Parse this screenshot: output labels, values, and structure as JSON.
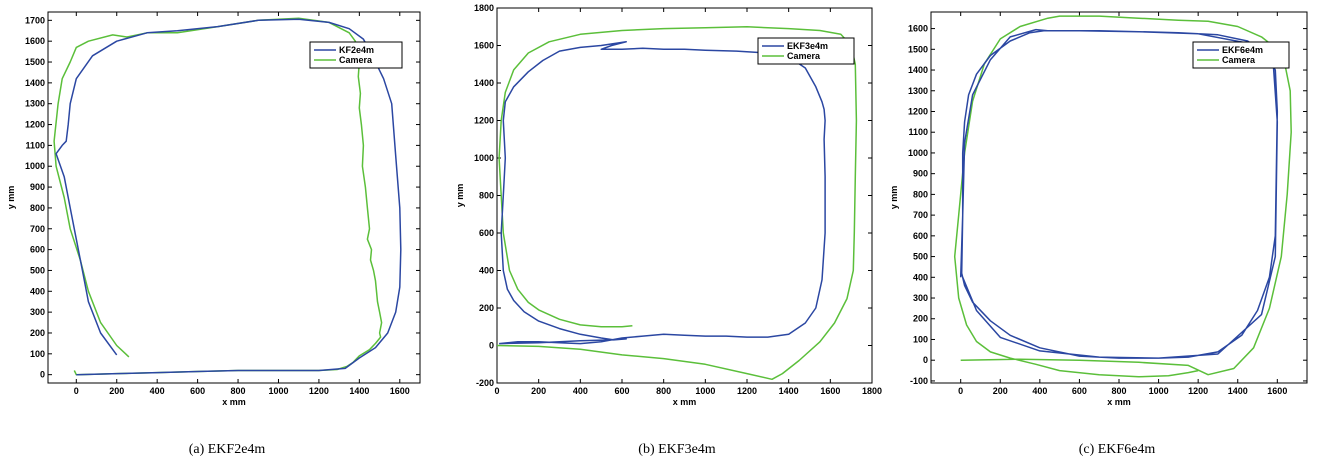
{
  "colors": {
    "estimate": "#2b47a2",
    "camera": "#5bbf3a"
  },
  "chart_data": [
    {
      "type": "line",
      "caption": "(a)  EKF2e4m",
      "xlabel": "x mm",
      "ylabel": "y mm",
      "xlim": [
        -140,
        1700
      ],
      "ylim": [
        -40,
        1740
      ],
      "xticks": [
        0,
        200,
        400,
        600,
        800,
        1000,
        1200,
        1400,
        1600
      ],
      "yticks": [
        0,
        100,
        200,
        300,
        400,
        500,
        600,
        700,
        800,
        900,
        1000,
        1100,
        1200,
        1300,
        1400,
        1500,
        1600,
        1700
      ],
      "legend_position": "top-right",
      "series": [
        {
          "name": "KF2e4m",
          "x": [
            200,
            120,
            60,
            30,
            0,
            -30,
            -60,
            -100,
            -70,
            -50,
            -40,
            -30,
            0,
            80,
            200,
            350,
            500,
            700,
            900,
            1100,
            1250,
            1350,
            1420,
            1470,
            1520,
            1560,
            1580,
            1600,
            1605,
            1600,
            1580,
            1540,
            1480,
            1400,
            1330,
            1200,
            1000,
            800,
            600,
            400,
            200,
            0
          ],
          "y": [
            95,
            200,
            350,
            500,
            650,
            800,
            950,
            1060,
            1100,
            1120,
            1200,
            1300,
            1420,
            1530,
            1600,
            1640,
            1650,
            1670,
            1700,
            1705,
            1690,
            1660,
            1610,
            1520,
            1420,
            1300,
            1050,
            800,
            600,
            420,
            300,
            200,
            130,
            80,
            30,
            20,
            20,
            20,
            15,
            10,
            5,
            0
          ]
        },
        {
          "name": "Camera",
          "x": [
            260,
            200,
            120,
            60,
            20,
            -30,
            -60,
            -100,
            -110,
            -90,
            -70,
            -30,
            0,
            60,
            180,
            250,
            350,
            500,
            700,
            900,
            1100,
            1250,
            1350,
            1380,
            1390,
            1400,
            1395,
            1405,
            1400,
            1410,
            1420,
            1415,
            1430,
            1440,
            1450,
            1440,
            1460,
            1455,
            1470,
            1480,
            1485,
            1490,
            1500,
            1510,
            1500,
            1505,
            1480,
            1450,
            1400,
            1370,
            1340,
            1290,
            1200,
            1000,
            800,
            600,
            400,
            200,
            0,
            -10
          ],
          "y": [
            85,
            140,
            250,
            400,
            550,
            700,
            850,
            1000,
            1120,
            1300,
            1420,
            1500,
            1570,
            1600,
            1630,
            1620,
            1640,
            1640,
            1670,
            1700,
            1710,
            1690,
            1640,
            1600,
            1560,
            1500,
            1430,
            1350,
            1280,
            1200,
            1100,
            1000,
            900,
            800,
            700,
            650,
            600,
            550,
            500,
            450,
            400,
            350,
            300,
            250,
            200,
            180,
            150,
            120,
            90,
            60,
            40,
            25,
            20,
            20,
            20,
            15,
            10,
            5,
            0,
            20
          ]
        }
      ]
    },
    {
      "type": "line",
      "caption": "(b)  EKF3e4m",
      "xlabel": "x mm",
      "ylabel": "y mm",
      "xlim": [
        0,
        1800
      ],
      "ylim": [
        -200,
        1800
      ],
      "xticks": [
        0,
        200,
        400,
        600,
        800,
        1000,
        1200,
        1400,
        1600,
        1800
      ],
      "yticks": [
        -200,
        0,
        200,
        400,
        600,
        800,
        1000,
        1200,
        1400,
        1600,
        1800
      ],
      "legend_position": "top-right",
      "series": [
        {
          "name": "EKF3e4m",
          "x": [
            10,
            100,
            200,
            300,
            400,
            500,
            600,
            700,
            800,
            900,
            1000,
            1100,
            1200,
            1300,
            1400,
            1480,
            1530,
            1560,
            1575,
            1575,
            1570,
            1575,
            1570,
            1560,
            1530,
            1480,
            1400,
            1300,
            1150,
            1000,
            900,
            800,
            700,
            600,
            500,
            550,
            620,
            500,
            400,
            300,
            220,
            150,
            80,
            40,
            30,
            40,
            30,
            20,
            30,
            50,
            80,
            130,
            200,
            300,
            400,
            500,
            560,
            620,
            550,
            400,
            200,
            10
          ],
          "y": [
            10,
            20,
            20,
            15,
            10,
            20,
            40,
            50,
            60,
            55,
            50,
            50,
            45,
            45,
            60,
            120,
            200,
            350,
            600,
            900,
            1100,
            1200,
            1260,
            1300,
            1380,
            1480,
            1540,
            1560,
            1570,
            1575,
            1580,
            1580,
            1585,
            1580,
            1580,
            1600,
            1620,
            1600,
            1590,
            1570,
            1520,
            1460,
            1380,
            1300,
            1200,
            1000,
            800,
            600,
            400,
            300,
            240,
            180,
            130,
            90,
            60,
            40,
            30,
            35,
            30,
            25,
            15,
            10
          ]
        },
        {
          "name": "Camera",
          "x": [
            650,
            600,
            500,
            400,
            300,
            200,
            150,
            100,
            60,
            30,
            20,
            10,
            20,
            40,
            80,
            150,
            250,
            400,
            600,
            800,
            1000,
            1200,
            1400,
            1550,
            1650,
            1700,
            1720,
            1725,
            1720,
            1715,
            1710,
            1680,
            1620,
            1550,
            1450,
            1370,
            1320,
            1200,
            1000,
            800,
            600,
            400,
            200,
            0
          ],
          "y": [
            105,
            100,
            100,
            110,
            140,
            190,
            230,
            300,
            400,
            600,
            800,
            1000,
            1200,
            1350,
            1470,
            1560,
            1620,
            1660,
            1680,
            1690,
            1695,
            1700,
            1690,
            1680,
            1660,
            1600,
            1500,
            1200,
            900,
            600,
            400,
            250,
            120,
            20,
            -80,
            -150,
            -180,
            -150,
            -100,
            -70,
            -50,
            -20,
            -5,
            0
          ]
        }
      ]
    },
    {
      "type": "line",
      "caption": "(c)  EKF6e4m",
      "xlabel": "x mm",
      "ylabel": "y mm",
      "xlim": [
        -150,
        1750
      ],
      "ylim": [
        -110,
        1680
      ],
      "xticks": [
        0,
        200,
        400,
        600,
        800,
        1000,
        1200,
        1400,
        1600
      ],
      "yticks": [
        -100,
        0,
        100,
        200,
        300,
        400,
        500,
        600,
        700,
        800,
        900,
        1000,
        1100,
        1200,
        1300,
        1400,
        1500,
        1600
      ],
      "legend_position": "top-right",
      "series": [
        {
          "name": "EKF6e4m",
          "x": [
            0,
            10,
            10,
            20,
            40,
            80,
            150,
            250,
            350,
            420,
            500,
            700,
            900,
            1100,
            1300,
            1450,
            1540,
            1590,
            1600,
            1595,
            1590,
            1560,
            1500,
            1420,
            1300,
            1150,
            1000,
            800,
            600,
            400,
            250,
            150,
            60,
            20,
            5,
            10,
            20,
            60,
            150,
            250,
            380,
            440,
            600,
            900,
            1200,
            1450,
            1580,
            1600,
            1590,
            1520,
            1300,
            1000,
            700,
            400,
            200,
            80,
            10
          ],
          "y": [
            400,
            700,
            1000,
            1150,
            1280,
            1380,
            1470,
            1540,
            1580,
            1590,
            1590,
            1590,
            1585,
            1580,
            1570,
            1540,
            1480,
            1400,
            1200,
            900,
            600,
            400,
            240,
            120,
            40,
            15,
            10,
            10,
            20,
            60,
            120,
            190,
            280,
            360,
            420,
            700,
            1050,
            1280,
            1450,
            1560,
            1595,
            1590,
            1590,
            1585,
            1575,
            1530,
            1420,
            1150,
            500,
            220,
            30,
            10,
            15,
            45,
            110,
            240,
            400
          ]
        },
        {
          "name": "Camera",
          "x": [
            0,
            300,
            600,
            900,
            1150,
            1250,
            1380,
            1480,
            1560,
            1620,
            1650,
            1670,
            1665,
            1640,
            1600,
            1520,
            1400,
            1250,
            1100,
            900,
            700,
            500,
            440,
            300,
            200,
            120,
            60,
            20,
            -10,
            -30,
            -10,
            30,
            80,
            150,
            250,
            380,
            500,
            700,
            900,
            1050,
            1150,
            1200
          ],
          "y": [
            0,
            5,
            0,
            -10,
            -25,
            -70,
            -40,
            60,
            250,
            500,
            800,
            1100,
            1300,
            1420,
            1500,
            1560,
            1610,
            1635,
            1640,
            1650,
            1660,
            1660,
            1650,
            1610,
            1550,
            1430,
            1250,
            1000,
            700,
            500,
            300,
            170,
            90,
            40,
            10,
            -20,
            -50,
            -70,
            -80,
            -75,
            -60,
            -50
          ]
        }
      ]
    }
  ]
}
